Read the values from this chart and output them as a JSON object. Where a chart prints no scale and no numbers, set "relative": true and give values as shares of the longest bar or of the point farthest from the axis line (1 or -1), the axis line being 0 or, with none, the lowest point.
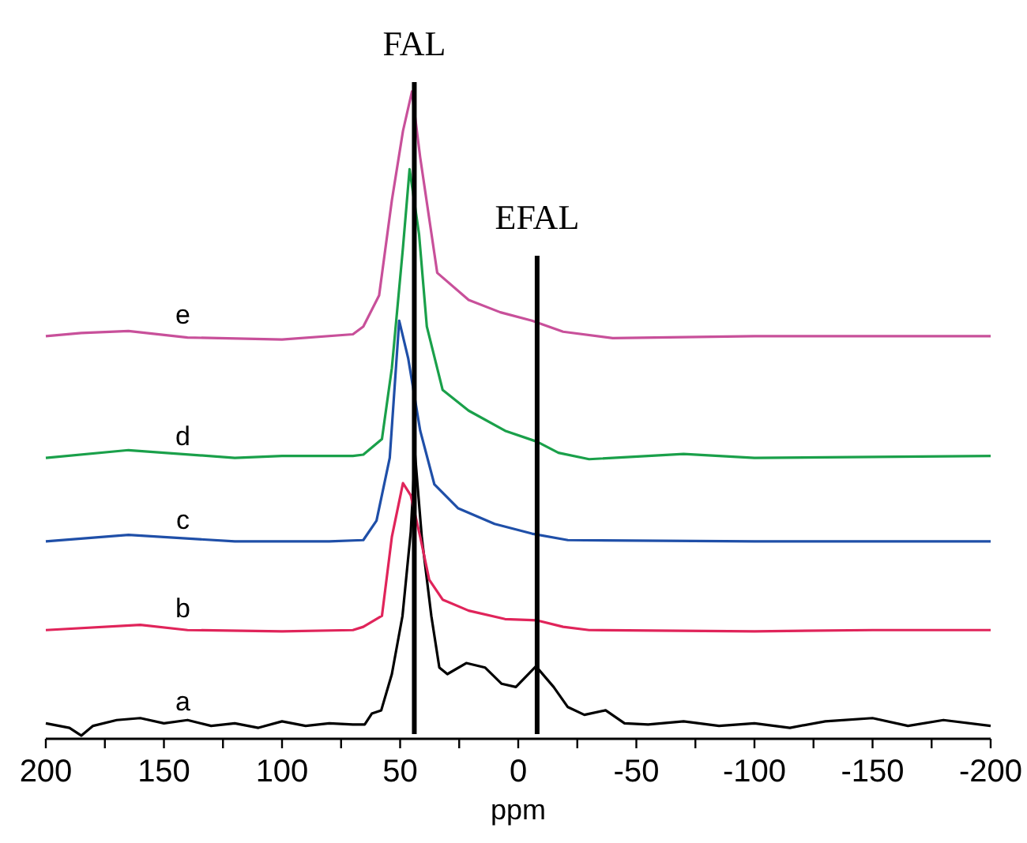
{
  "chart_data": {
    "type": "line",
    "relative": true,
    "xlabel": "ppm",
    "xlim": [
      200,
      -200
    ],
    "xticks": [
      200,
      {
        "value": 175,
        "label": null
      },
      150,
      {
        "value": 125,
        "label": null
      },
      100,
      {
        "value": 75,
        "label": null
      },
      50,
      {
        "value": 25,
        "label": null
      },
      0,
      {
        "value": -25,
        "label": null
      },
      -50,
      {
        "value": -75,
        "label": null
      },
      -100,
      {
        "value": -125,
        "label": null
      },
      -150,
      {
        "value": -175,
        "label": null
      },
      -200
    ],
    "grid": false,
    "marker": "none",
    "line_style": "solid",
    "ref_lines": [
      {
        "axis": "x",
        "value": 44,
        "label": "FAL",
        "color": "#000000"
      },
      {
        "axis": "x",
        "value": -8,
        "label": "EFAL",
        "color": "#000000"
      }
    ],
    "series": [
      {
        "name": "a",
        "color": "#000000",
        "x": [
          200,
          190,
          185,
          180,
          170,
          160,
          150,
          140,
          130,
          120,
          110,
          100,
          90,
          80,
          70,
          65,
          62,
          58,
          53.5,
          49,
          45.5,
          43.7,
          40.8,
          36.8,
          33.4,
          30,
          22,
          14,
          7,
          1,
          -7.5,
          -15,
          -21,
          -28,
          -37,
          -45,
          -55,
          -70,
          -85,
          -100,
          -115,
          -130,
          -150,
          -165,
          -180,
          -200
        ],
        "values": [
          0.024,
          0.017,
          0.005,
          0.02,
          0.029,
          0.032,
          0.024,
          0.029,
          0.02,
          0.024,
          0.017,
          0.027,
          0.02,
          0.024,
          0.022,
          0.022,
          0.039,
          0.044,
          0.1,
          0.19,
          0.32,
          0.44,
          0.31,
          0.19,
          0.11,
          0.1,
          0.117,
          0.11,
          0.085,
          0.08,
          0.112,
          0.08,
          0.049,
          0.037,
          0.044,
          0.024,
          0.022,
          0.027,
          0.02,
          0.024,
          0.017,
          0.027,
          0.032,
          0.02,
          0.029,
          0.02
        ]
      },
      {
        "name": "b",
        "color": "#e0245a",
        "x": [
          200,
          160,
          140,
          100,
          70,
          65.6,
          57.7,
          53.5,
          48.8,
          45.5,
          41.5,
          37.7,
          32,
          21,
          5.6,
          -8,
          -19,
          -30,
          -100,
          -150,
          -200
        ],
        "values": [
          0.168,
          0.176,
          0.168,
          0.166,
          0.168,
          0.173,
          0.19,
          0.312,
          0.395,
          0.376,
          0.312,
          0.246,
          0.215,
          0.198,
          0.185,
          0.183,
          0.173,
          0.168,
          0.166,
          0.168,
          0.168
        ]
      },
      {
        "name": "c",
        "color": "#1f4fa8",
        "x": [
          200,
          165,
          120,
          80,
          65.6,
          60,
          54.4,
          50.4,
          46.6,
          41.5,
          35.5,
          25.4,
          10,
          -5.8,
          -21,
          -100,
          -200
        ],
        "values": [
          0.305,
          0.315,
          0.305,
          0.305,
          0.307,
          0.337,
          0.434,
          0.646,
          0.588,
          0.476,
          0.393,
          0.356,
          0.332,
          0.317,
          0.307,
          0.305,
          0.305
        ]
      },
      {
        "name": "d",
        "color": "#1aa04a",
        "x": [
          200,
          165,
          120,
          100,
          70,
          65.6,
          57.7,
          53.5,
          48.8,
          46,
          42,
          38.7,
          32,
          21,
          5.6,
          -8,
          -17,
          -30,
          -70,
          -100,
          -200
        ],
        "values": [
          0.434,
          0.446,
          0.434,
          0.437,
          0.437,
          0.439,
          0.463,
          0.573,
          0.759,
          0.88,
          0.78,
          0.637,
          0.539,
          0.507,
          0.476,
          0.459,
          0.442,
          0.432,
          0.44,
          0.434,
          0.437
        ]
      },
      {
        "name": "e",
        "color": "#c8509a",
        "x": [
          200,
          185,
          165,
          140,
          100,
          70,
          65.6,
          58.9,
          53.5,
          48.8,
          45,
          41.5,
          34.3,
          21,
          7.6,
          -5.8,
          -19,
          -40,
          -100,
          -200
        ],
        "values": [
          0.622,
          0.627,
          0.63,
          0.62,
          0.617,
          0.625,
          0.637,
          0.685,
          0.832,
          0.939,
          1,
          0.898,
          0.72,
          0.678,
          0.659,
          0.646,
          0.629,
          0.619,
          0.622,
          0.622
        ]
      }
    ]
  }
}
